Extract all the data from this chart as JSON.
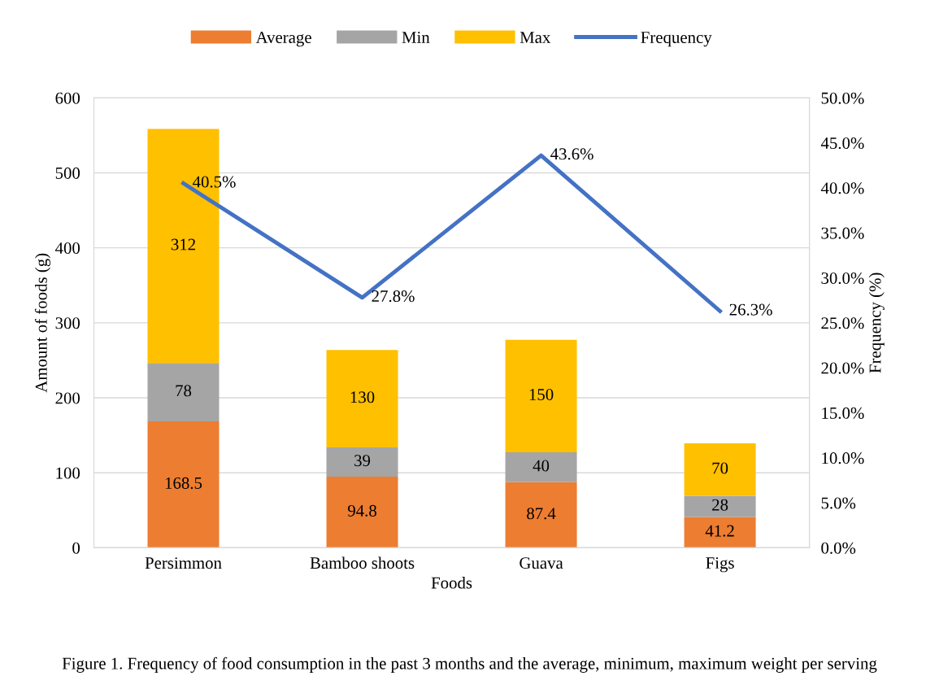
{
  "chart_data": {
    "type": "bar",
    "stacked": true,
    "categories": [
      "Persimmon",
      "Bamboo shoots",
      "Guava",
      "Figs"
    ],
    "xlabel": "Foods",
    "ylabel": "Amount of foods (g)",
    "y2label": "Frequency (%)",
    "series": [
      {
        "name": "Average",
        "color": "#ed7d31",
        "values": [
          168.5,
          94.8,
          87.4,
          41.2
        ],
        "value_labels": [
          "168.5",
          "94.8",
          "87.4",
          "41.2"
        ]
      },
      {
        "name": "Min",
        "color": "#a5a5a5",
        "values": [
          78,
          39,
          40,
          28
        ],
        "value_labels": [
          "78",
          "39",
          "40",
          "28"
        ]
      },
      {
        "name": "Max",
        "color": "#ffc000",
        "values": [
          312,
          130,
          150,
          70
        ],
        "value_labels": [
          "312",
          "130",
          "150",
          "70"
        ]
      },
      {
        "name": "Frequency",
        "type": "line",
        "axis": "y2",
        "color": "#4472c4",
        "values": [
          40.5,
          27.8,
          43.6,
          26.3
        ],
        "value_labels": [
          "40.5%",
          "27.8%",
          "43.6%",
          "26.3%"
        ]
      }
    ],
    "ylim": [
      0,
      600
    ],
    "yticks": [
      0,
      100,
      200,
      300,
      400,
      500,
      600
    ],
    "y2lim": [
      0,
      50
    ],
    "y2ticks": [
      {
        "value": 0,
        "label": "0.0%"
      },
      {
        "value": 5,
        "label": "5.0%"
      },
      {
        "value": 10,
        "label": "10.0%"
      },
      {
        "value": 15,
        "label": "15.0%"
      },
      {
        "value": 20,
        "label": "20.0%"
      },
      {
        "value": 25,
        "label": "25.0%"
      },
      {
        "value": 30,
        "label": "30.0%"
      },
      {
        "value": 35,
        "label": "35.0%"
      },
      {
        "value": 40,
        "label": "40.0%"
      },
      {
        "value": 45,
        "label": "45.0%"
      },
      {
        "value": 50,
        "label": "50.0%"
      }
    ],
    "grid": "y",
    "legend": "top",
    "marker": "none",
    "line_style": "solid",
    "annotations": [
      "Figure 1. Frequency of food consumption in the past 3 months and the average, minimum, maximum weight per serving"
    ]
  }
}
